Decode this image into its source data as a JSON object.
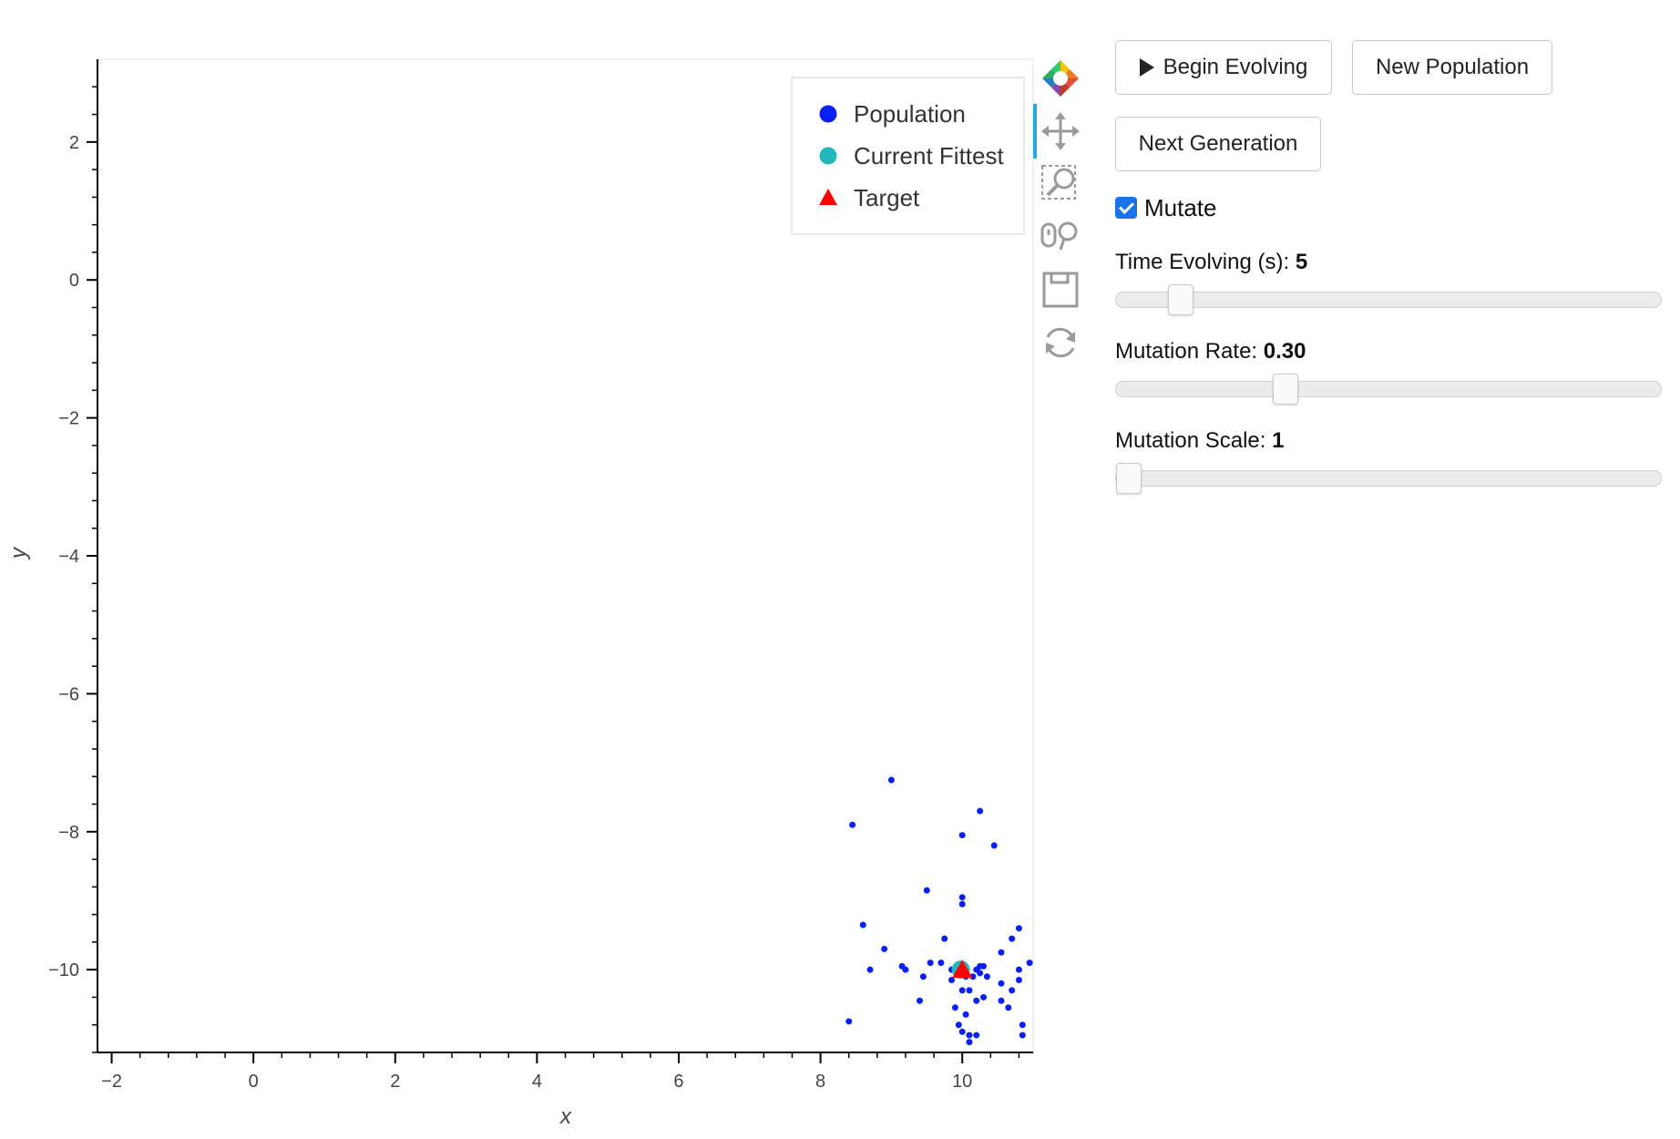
{
  "chart_data": {
    "type": "scatter",
    "xlabel": "x",
    "ylabel": "y",
    "xlim": [
      -2.2,
      11.0
    ],
    "ylim": [
      -11.2,
      3.2
    ],
    "x_ticks": [
      -2,
      0,
      2,
      4,
      6,
      8,
      10
    ],
    "y_ticks": [
      2,
      0,
      -2,
      -4,
      -6,
      -8,
      -10
    ],
    "legend": {
      "position": "top-right",
      "entries": [
        {
          "label": "Population",
          "marker": "circle",
          "color": "#0a1ff2"
        },
        {
          "label": "Current Fittest",
          "marker": "circle",
          "color": "#20b8b8"
        },
        {
          "label": "Target",
          "marker": "triangle",
          "color": "#ff0000"
        }
      ]
    },
    "series": [
      {
        "name": "Population",
        "marker": "circle",
        "color": "#0a1ff2",
        "points": [
          [
            9.0,
            -7.25
          ],
          [
            8.45,
            -7.9
          ],
          [
            10.25,
            -7.7
          ],
          [
            10.0,
            -8.05
          ],
          [
            10.45,
            -8.2
          ],
          [
            9.5,
            -8.85
          ],
          [
            10.0,
            -8.95
          ],
          [
            10.0,
            -9.05
          ],
          [
            8.6,
            -9.35
          ],
          [
            9.75,
            -9.55
          ],
          [
            10.8,
            -9.4
          ],
          [
            10.7,
            -9.55
          ],
          [
            8.9,
            -9.7
          ],
          [
            10.55,
            -9.75
          ],
          [
            10.95,
            -9.9
          ],
          [
            9.55,
            -9.9
          ],
          [
            9.7,
            -9.9
          ],
          [
            9.15,
            -9.95
          ],
          [
            8.7,
            -10.0
          ],
          [
            9.2,
            -10.0
          ],
          [
            10.25,
            -9.95
          ],
          [
            10.3,
            -9.95
          ],
          [
            10.2,
            -10.0
          ],
          [
            10.25,
            -10.05
          ],
          [
            10.8,
            -10.0
          ],
          [
            9.45,
            -10.1
          ],
          [
            9.85,
            -10.0
          ],
          [
            10.05,
            -10.1
          ],
          [
            10.15,
            -10.1
          ],
          [
            10.35,
            -10.1
          ],
          [
            9.85,
            -10.15
          ],
          [
            10.55,
            -10.2
          ],
          [
            10.8,
            -10.15
          ],
          [
            10.0,
            -10.3
          ],
          [
            10.1,
            -10.3
          ],
          [
            10.7,
            -10.3
          ],
          [
            9.4,
            -10.45
          ],
          [
            10.2,
            -10.45
          ],
          [
            10.3,
            -10.4
          ],
          [
            9.9,
            -10.55
          ],
          [
            10.55,
            -10.45
          ],
          [
            10.65,
            -10.55
          ],
          [
            10.05,
            -10.65
          ],
          [
            8.4,
            -10.75
          ],
          [
            9.95,
            -10.8
          ],
          [
            10.0,
            -10.9
          ],
          [
            10.2,
            -10.95
          ],
          [
            10.85,
            -10.8
          ],
          [
            10.1,
            -10.95
          ],
          [
            10.85,
            -10.95
          ],
          [
            10.1,
            -11.05
          ]
        ]
      },
      {
        "name": "Current Fittest",
        "marker": "circle",
        "color": "#20b8b8",
        "points": [
          [
            9.98,
            -10.0
          ]
        ]
      },
      {
        "name": "Target",
        "marker": "triangle",
        "color": "#ff0000",
        "points": [
          [
            10.0,
            -10.0
          ]
        ]
      }
    ]
  },
  "toolbar": {
    "tools": [
      {
        "name": "bokeh-logo-icon",
        "active": false
      },
      {
        "name": "pan-icon",
        "active": true
      },
      {
        "name": "box-zoom-icon",
        "active": false
      },
      {
        "name": "wheel-zoom-icon",
        "active": false
      },
      {
        "name": "save-icon",
        "active": false
      },
      {
        "name": "reset-icon",
        "active": false
      }
    ]
  },
  "widgets": {
    "begin_label": "Begin Evolving",
    "new_population_label": "New Population",
    "next_generation_label": "Next Generation",
    "mutate_label": "Mutate",
    "mutate_checked": true,
    "time_label": "Time Evolving (s): ",
    "time_value": "5",
    "time_fraction": 0.1,
    "rate_label": "Mutation Rate: ",
    "rate_value": "0.30",
    "rate_fraction": 0.3,
    "scale_label": "Mutation Scale: ",
    "scale_value": "1",
    "scale_fraction": 0.0
  }
}
